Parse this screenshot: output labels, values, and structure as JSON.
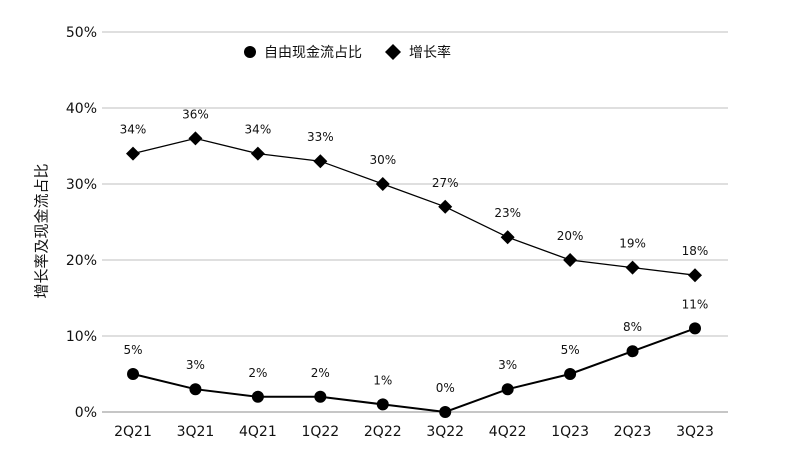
{
  "chart_data": {
    "type": "line",
    "categories": [
      "2Q21",
      "3Q21",
      "4Q21",
      "1Q22",
      "2Q22",
      "3Q22",
      "4Q22",
      "1Q23",
      "2Q23",
      "3Q23"
    ],
    "series": [
      {
        "name": "自由现金流占比",
        "marker": "circle",
        "values": [
          5,
          3,
          2,
          2,
          1,
          0,
          3,
          5,
          8,
          11
        ],
        "labels": [
          "5%",
          "3%",
          "2%",
          "2%",
          "1%",
          "0%",
          "3%",
          "5%",
          "8%",
          "11%"
        ]
      },
      {
        "name": "增长率",
        "marker": "diamond",
        "values": [
          34,
          36,
          34,
          33,
          30,
          27,
          23,
          20,
          19,
          18
        ],
        "labels": [
          "34%",
          "36%",
          "34%",
          "33%",
          "30%",
          "27%",
          "23%",
          "20%",
          "19%",
          "18%"
        ]
      }
    ],
    "ylabel": "增长率及现金流占比",
    "xlabel": "",
    "ylim": [
      0,
      50
    ],
    "yticks": [
      "0%",
      "10%",
      "20%",
      "30%",
      "40%",
      "50%"
    ],
    "grid": true,
    "legend": "top-center",
    "colors": {
      "line": "#000000",
      "grid": "#bfbfbf"
    }
  }
}
